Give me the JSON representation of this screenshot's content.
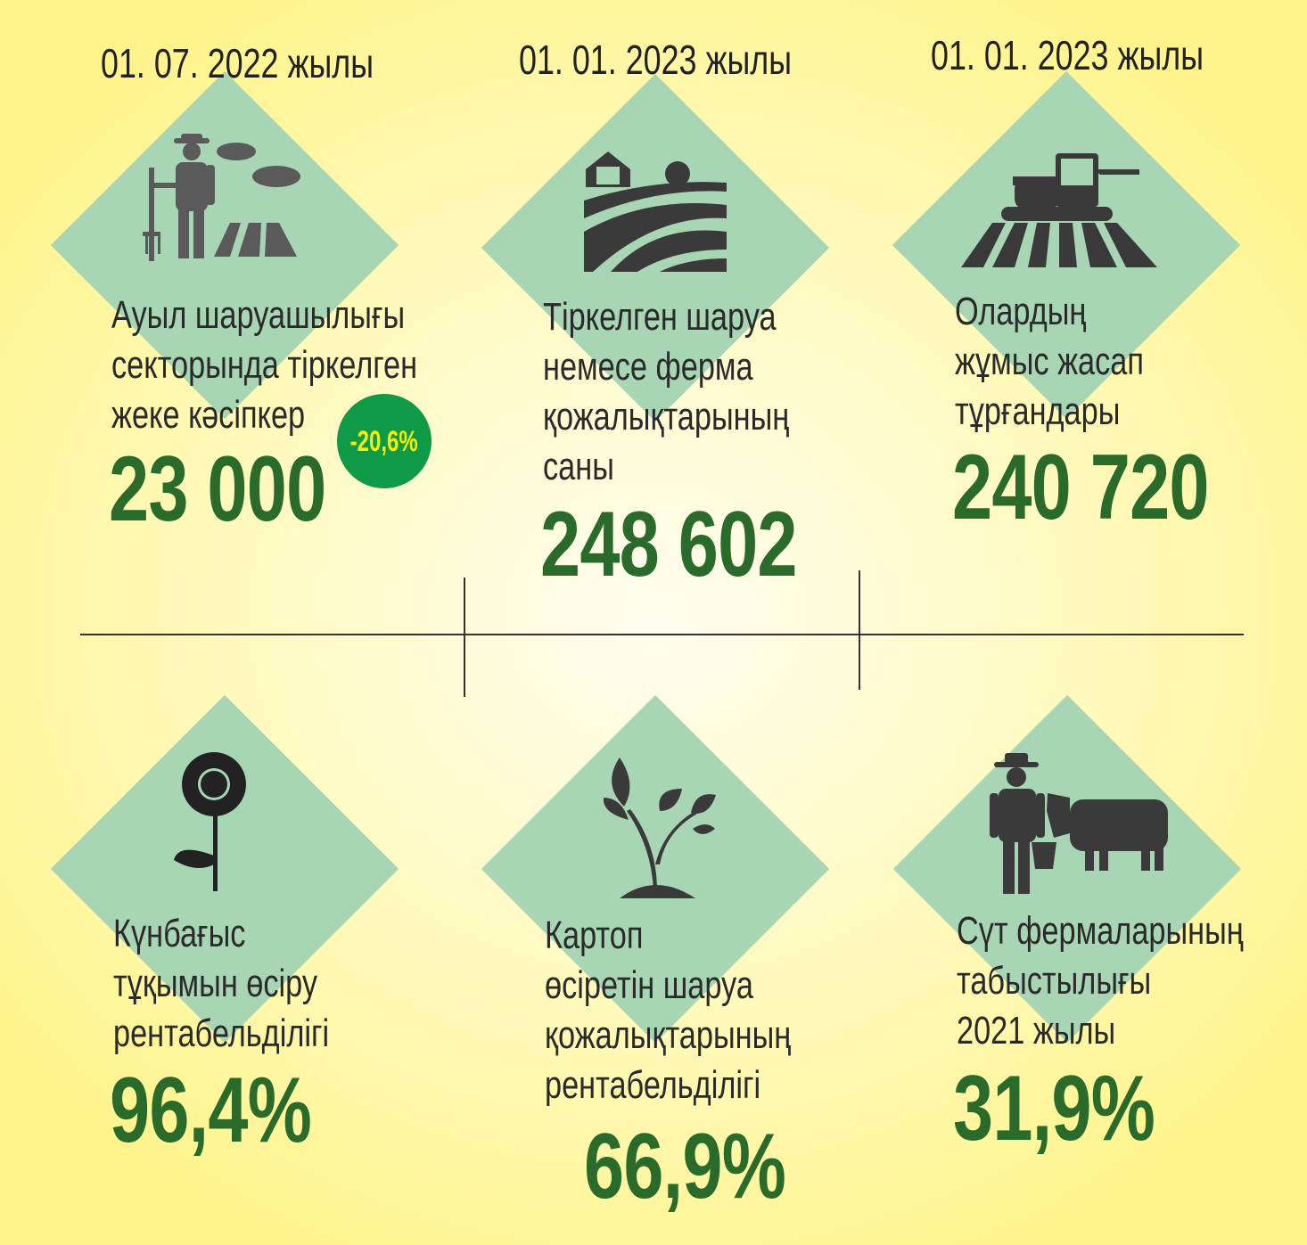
{
  "colors": {
    "diamond": "#a8d5b4",
    "number": "#2a6a2a",
    "badge": "#0e9a47",
    "badge_text": "#f5f000",
    "icon": "#555555"
  },
  "top": [
    {
      "date": "01. 07. 2022 жылы",
      "label": [
        "Ауыл шаруашылығы",
        "секторында тіркелген",
        "жеке кәсіпкер"
      ],
      "value": "23 000",
      "badge": "-20,6%",
      "icon": "farmer-field-icon"
    },
    {
      "date": "01. 01. 2023 жылы",
      "label": [
        "Тіркелген шаруа",
        "немесе ферма",
        "қожалықтарының",
        "саны"
      ],
      "value": "248 602",
      "icon": "farm-barn-icon"
    },
    {
      "date": "01. 01. 2023 жылы",
      "label": [
        "Олардың",
        "жұмыс жасап",
        "тұрғандары"
      ],
      "value": "240 720",
      "icon": "combine-harvester-icon"
    }
  ],
  "bottom": [
    {
      "label": [
        "Күнбағыс",
        "тұқымын өсіру",
        "рентабельділігі"
      ],
      "value": "96,4%",
      "icon": "sunflower-icon"
    },
    {
      "label": [
        "Картоп",
        "өсіретін шаруа",
        "қожалықтарының",
        "рентабельділігі"
      ],
      "value": "66,9%",
      "icon": "sprout-icon"
    },
    {
      "label": [
        "Сүт фермаларының",
        "табыстылығы",
        "2021 жылы"
      ],
      "value": "31,9%",
      "icon": "dairy-farmer-cow-icon"
    }
  ]
}
